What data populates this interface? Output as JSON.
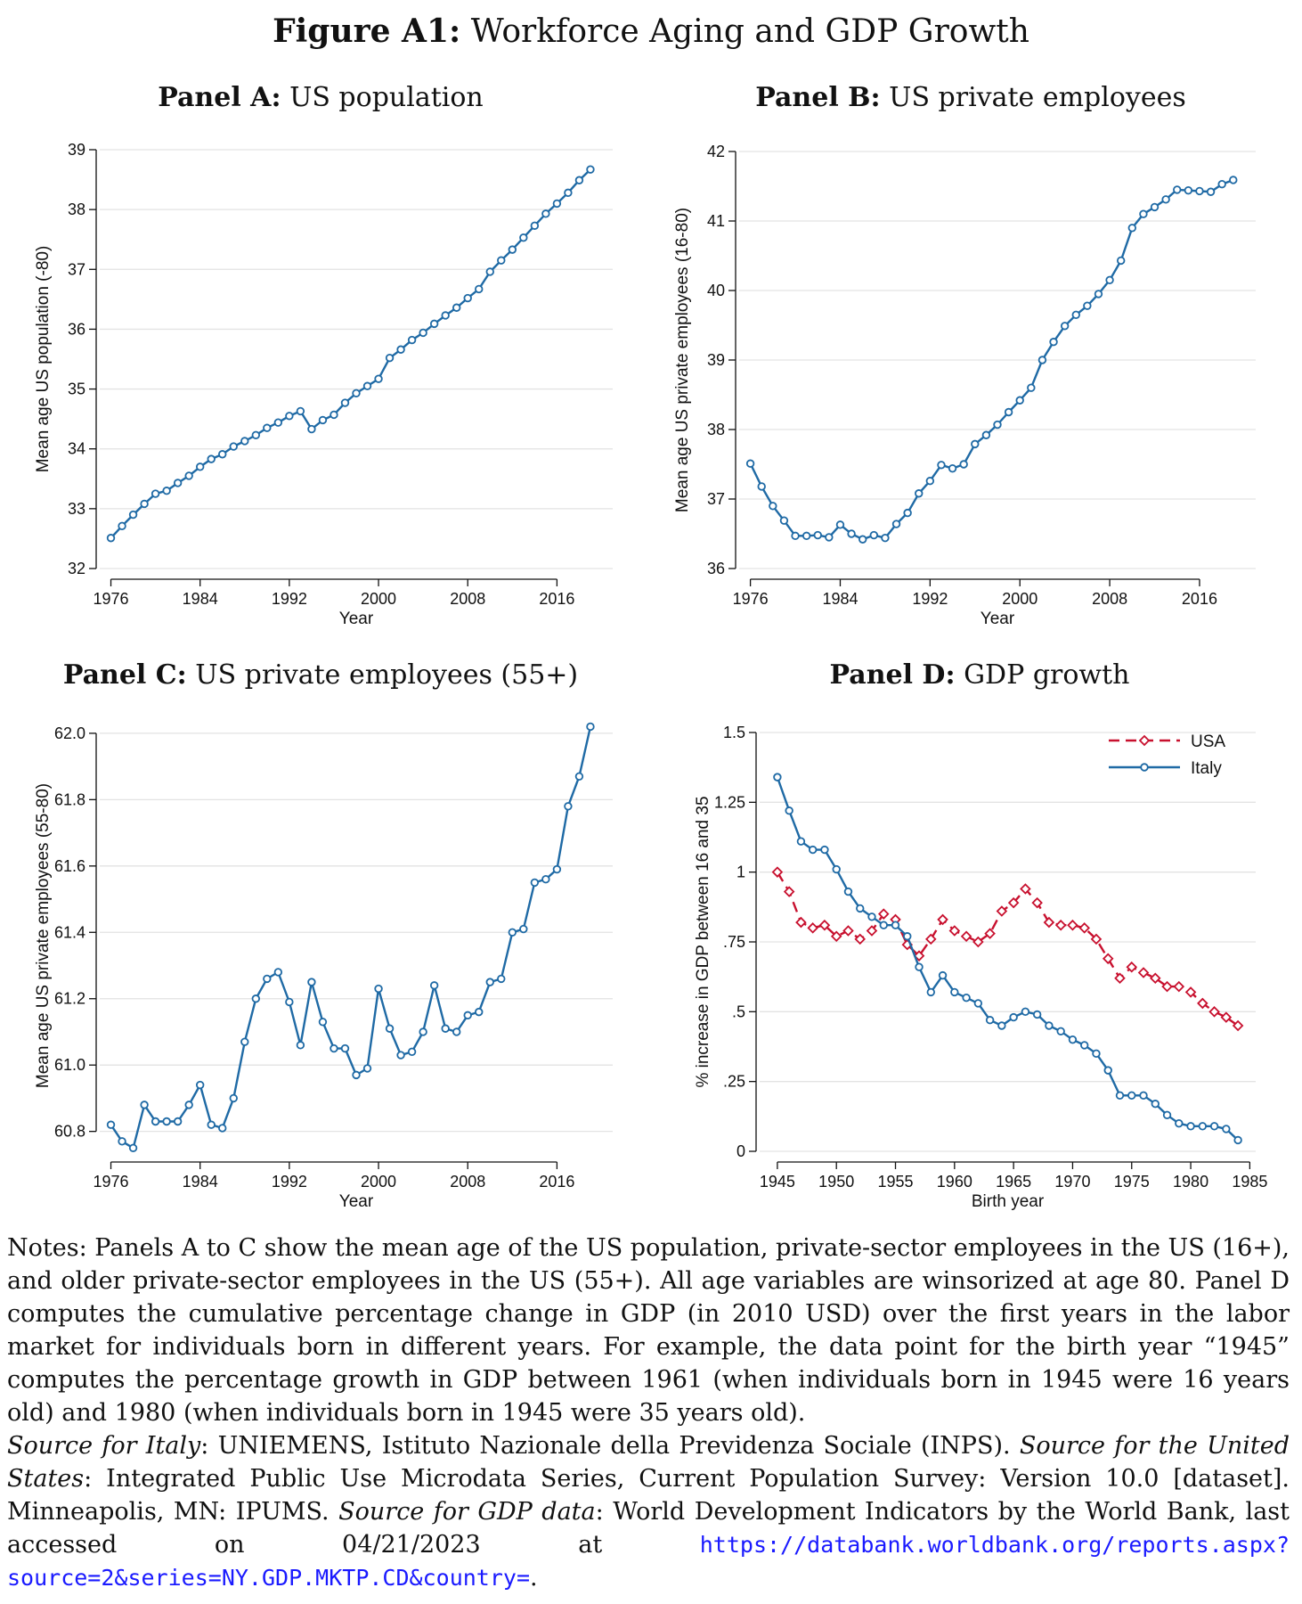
{
  "figure": {
    "title_bold": "Figure A1:",
    "title_rest": "Workforce Aging and GDP Growth"
  },
  "chart_data": [
    {
      "id": "A",
      "type": "line",
      "title_bold": "Panel A:",
      "title_rest": "US population",
      "xlabel": "Year",
      "ylabel": "Mean age US population (-80)",
      "xlim": [
        1975,
        2021
      ],
      "ylim": [
        32,
        39
      ],
      "xticks": [
        1976,
        1984,
        1992,
        2000,
        2008,
        2016
      ],
      "yticks": [
        32,
        33,
        34,
        35,
        36,
        37,
        38,
        39
      ],
      "ytick_labels": [
        "32",
        "33",
        "34",
        "35",
        "36",
        "37",
        "38",
        "39"
      ],
      "grid": true,
      "series": [
        {
          "color": "#1f6aa5",
          "marker": "circle",
          "x": [
            1976,
            1977,
            1978,
            1979,
            1980,
            1981,
            1982,
            1983,
            1984,
            1985,
            1986,
            1987,
            1988,
            1989,
            1990,
            1991,
            1992,
            1993,
            1994,
            1995,
            1996,
            1997,
            1998,
            1999,
            2000,
            2001,
            2002,
            2003,
            2004,
            2005,
            2006,
            2007,
            2008,
            2009,
            2010,
            2011,
            2012,
            2013,
            2014,
            2015,
            2016,
            2017,
            2018,
            2019
          ],
          "y": [
            32.51,
            32.71,
            32.9,
            33.08,
            33.25,
            33.3,
            33.43,
            33.55,
            33.7,
            33.83,
            33.91,
            34.04,
            34.13,
            34.23,
            34.35,
            34.44,
            34.55,
            34.63,
            34.33,
            34.48,
            34.57,
            34.77,
            34.93,
            35.05,
            35.17,
            35.52,
            35.66,
            35.82,
            35.94,
            36.09,
            36.23,
            36.36,
            36.52,
            36.67,
            36.96,
            37.15,
            37.33,
            37.53,
            37.73,
            37.93,
            38.1,
            38.28,
            38.49,
            38.67
          ]
        }
      ]
    },
    {
      "id": "B",
      "type": "line",
      "title_bold": "Panel B:",
      "title_rest": "US private employees",
      "xlabel": "Year",
      "ylabel": "Mean age US private employees (16-80)",
      "xlim": [
        1975,
        2021
      ],
      "ylim": [
        36,
        42
      ],
      "xticks": [
        1976,
        1984,
        1992,
        2000,
        2008,
        2016
      ],
      "yticks": [
        36,
        37,
        38,
        39,
        40,
        41,
        42
      ],
      "ytick_labels": [
        "36",
        "37",
        "38",
        "39",
        "40",
        "41",
        "42"
      ],
      "grid": true,
      "series": [
        {
          "color": "#1f6aa5",
          "marker": "circle",
          "x": [
            1976,
            1977,
            1978,
            1979,
            1980,
            1981,
            1982,
            1983,
            1984,
            1985,
            1986,
            1987,
            1988,
            1989,
            1990,
            1991,
            1992,
            1993,
            1994,
            1995,
            1996,
            1997,
            1998,
            1999,
            2000,
            2001,
            2002,
            2003,
            2004,
            2005,
            2006,
            2007,
            2008,
            2009,
            2010,
            2011,
            2012,
            2013,
            2014,
            2015,
            2016,
            2017,
            2018,
            2019
          ],
          "y": [
            37.51,
            37.18,
            36.9,
            36.69,
            36.47,
            36.47,
            36.48,
            36.45,
            36.63,
            36.5,
            36.42,
            36.48,
            36.44,
            36.64,
            36.8,
            37.08,
            37.26,
            37.49,
            37.44,
            37.5,
            37.79,
            37.92,
            38.07,
            38.25,
            38.42,
            38.6,
            39.0,
            39.26,
            39.49,
            39.65,
            39.78,
            39.95,
            40.15,
            40.43,
            40.9,
            41.1,
            41.2,
            41.31,
            41.45,
            41.44,
            41.43,
            41.42,
            41.53,
            41.59
          ]
        }
      ]
    },
    {
      "id": "C",
      "type": "line",
      "title_bold": "Panel C:",
      "title_rest": "US private employees (55+)",
      "xlabel": "Year",
      "ylabel": "Mean age US private employees (55-80)",
      "xlim": [
        1975,
        2021
      ],
      "ylim": [
        60.74,
        62.04
      ],
      "xticks": [
        1976,
        1984,
        1992,
        2000,
        2008,
        2016
      ],
      "yticks": [
        60.8,
        61.0,
        61.2,
        61.4,
        61.6,
        61.8,
        62.0
      ],
      "ytick_labels": [
        "60.8",
        "61.0",
        "61.2",
        "61.4",
        "61.6",
        "61.8",
        "62.0"
      ],
      "grid": true,
      "series": [
        {
          "color": "#1f6aa5",
          "marker": "circle",
          "x": [
            1976,
            1977,
            1978,
            1979,
            1980,
            1981,
            1982,
            1983,
            1984,
            1985,
            1986,
            1987,
            1988,
            1989,
            1990,
            1991,
            1992,
            1993,
            1994,
            1995,
            1996,
            1997,
            1998,
            1999,
            2000,
            2001,
            2002,
            2003,
            2004,
            2005,
            2006,
            2007,
            2008,
            2009,
            2010,
            2011,
            2012,
            2013,
            2014,
            2015,
            2016,
            2017,
            2018,
            2019
          ],
          "y": [
            60.82,
            60.77,
            60.75,
            60.88,
            60.83,
            60.83,
            60.83,
            60.88,
            60.94,
            60.82,
            60.81,
            60.9,
            61.07,
            61.2,
            61.26,
            61.28,
            61.19,
            61.06,
            61.25,
            61.13,
            61.05,
            61.05,
            60.97,
            60.99,
            61.23,
            61.11,
            61.03,
            61.04,
            61.1,
            61.24,
            61.11,
            61.1,
            61.15,
            61.16,
            61.25,
            61.26,
            61.4,
            61.41,
            61.55,
            61.56,
            61.59,
            61.78,
            61.87,
            62.02
          ]
        }
      ]
    },
    {
      "id": "D",
      "type": "line",
      "title_bold": "Panel D:",
      "title_rest": "GDP growth",
      "xlabel": "Birth year",
      "ylabel": "% increase in GDP between 16 and 35",
      "xlim": [
        1943.5,
        1985.5
      ],
      "ylim": [
        0,
        1.5
      ],
      "xticks": [
        1945,
        1950,
        1955,
        1960,
        1965,
        1970,
        1975,
        1980,
        1985
      ],
      "yticks": [
        0,
        0.25,
        0.5,
        0.75,
        1,
        1.25,
        1.5
      ],
      "ytick_labels": [
        "0",
        ".25",
        ".5",
        ".75",
        "1",
        "1.25",
        "1.5"
      ],
      "grid": true,
      "legend": "top-right",
      "series": [
        {
          "name": "USA",
          "color": "#c8102e",
          "marker": "diamond",
          "dash": "dashed",
          "x": [
            1945,
            1946,
            1947,
            1948,
            1949,
            1950,
            1951,
            1952,
            1953,
            1954,
            1955,
            1956,
            1957,
            1958,
            1959,
            1960,
            1961,
            1962,
            1963,
            1964,
            1965,
            1966,
            1967,
            1968,
            1969,
            1970,
            1971,
            1972,
            1973,
            1974,
            1975,
            1976,
            1977,
            1978,
            1979,
            1980,
            1981,
            1982,
            1983,
            1984
          ],
          "y": [
            1.0,
            0.93,
            0.82,
            0.8,
            0.81,
            0.77,
            0.79,
            0.76,
            0.79,
            0.85,
            0.83,
            0.74,
            0.7,
            0.76,
            0.83,
            0.79,
            0.77,
            0.75,
            0.78,
            0.86,
            0.89,
            0.94,
            0.89,
            0.82,
            0.81,
            0.81,
            0.8,
            0.76,
            0.69,
            0.62,
            0.66,
            0.64,
            0.62,
            0.59,
            0.59,
            0.57,
            0.53,
            0.5,
            0.48,
            0.45
          ]
        },
        {
          "name": "Italy",
          "color": "#1f6aa5",
          "marker": "circle",
          "dash": "solid",
          "x": [
            1945,
            1946,
            1947,
            1948,
            1949,
            1950,
            1951,
            1952,
            1953,
            1954,
            1955,
            1956,
            1957,
            1958,
            1959,
            1960,
            1961,
            1962,
            1963,
            1964,
            1965,
            1966,
            1967,
            1968,
            1969,
            1970,
            1971,
            1972,
            1973,
            1974,
            1975,
            1976,
            1977,
            1978,
            1979,
            1980,
            1981,
            1982,
            1983,
            1984
          ],
          "y": [
            1.34,
            1.22,
            1.11,
            1.08,
            1.08,
            1.01,
            0.93,
            0.87,
            0.84,
            0.81,
            0.81,
            0.77,
            0.66,
            0.57,
            0.63,
            0.57,
            0.55,
            0.53,
            0.47,
            0.45,
            0.48,
            0.5,
            0.49,
            0.45,
            0.43,
            0.4,
            0.38,
            0.35,
            0.29,
            0.2,
            0.2,
            0.2,
            0.17,
            0.13,
            0.1,
            0.09,
            0.09,
            0.09,
            0.08,
            0.04
          ]
        }
      ]
    }
  ],
  "notes": {
    "paragraph1": "Notes: Panels A to C show the mean age of the US population, private-sector employees in the US (16+), and older private-sector employees in the US (55+). All age variables are winsorized at age 80. Panel D computes the cumulative percentage change in GDP (in 2010 USD) over the first years in the labor market for individuals born in different years. For example, the data point for the birth year “1945” computes the percentage growth in GDP between 1961 (when individuals born in 1945 were 16 years old) and 1980 (when individuals born in 1945 were 35 years old).",
    "italy_label": "Source for Italy",
    "italy_text": ": UNIEMENS, Istituto Nazionale della Previdenza Sociale (INPS). ",
    "us_label": "Source for the United States",
    "us_text": ": Integrated Public Use Microdata Series, Current Population Survey: Version 10.0 [dataset]. Minneapolis, MN: IPUMS. ",
    "gdp_label": "Source for GDP data",
    "gdp_text": ": World Development Indicators by the World Bank, last accessed on 04/21/2023 at ",
    "url": "https://databank.worldbank.org/reports.aspx?source=2&series=NY.GDP.MKTP.CD&country=",
    "end": "."
  }
}
